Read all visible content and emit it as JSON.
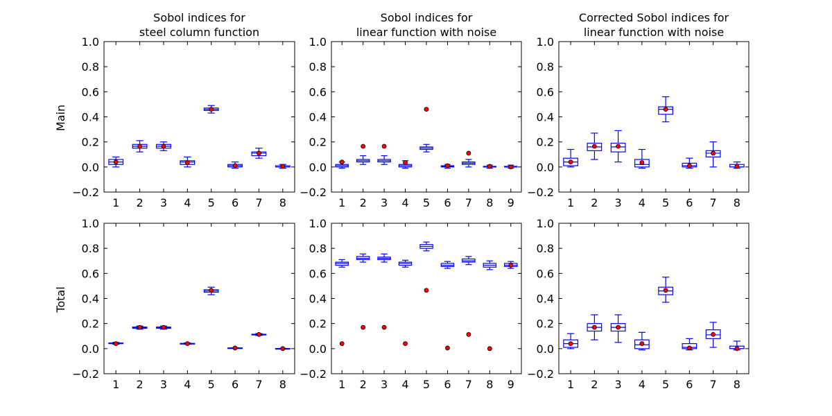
{
  "row_labels": [
    "Main",
    "Total"
  ],
  "colors": {
    "box": "#0000ff",
    "marker_fill": "#ff0000",
    "marker_edge": "#000000",
    "axes": "#000000"
  },
  "chart_data": [
    {
      "type": "box",
      "row": "Main",
      "title": "Sobol indices for\nsteel column function",
      "categories": [
        "1",
        "2",
        "3",
        "4",
        "5",
        "6",
        "7",
        "8"
      ],
      "yticks": [
        "−0.2",
        "0.0",
        "0.2",
        "0.4",
        "0.6",
        "0.8",
        "1.0"
      ],
      "ylim": [
        -0.2,
        1.0
      ],
      "boxes": [
        {
          "low": 0.0,
          "q1": 0.02,
          "median": 0.04,
          "q3": 0.06,
          "high": 0.08
        },
        {
          "low": 0.12,
          "q1": 0.15,
          "median": 0.165,
          "q3": 0.18,
          "high": 0.21
        },
        {
          "low": 0.13,
          "q1": 0.15,
          "median": 0.165,
          "q3": 0.18,
          "high": 0.2
        },
        {
          "low": 0.0,
          "q1": 0.02,
          "median": 0.04,
          "q3": 0.05,
          "high": 0.08
        },
        {
          "low": 0.43,
          "q1": 0.45,
          "median": 0.46,
          "q3": 0.47,
          "high": 0.49
        },
        {
          "low": -0.01,
          "q1": 0.0,
          "median": 0.01,
          "q3": 0.02,
          "high": 0.04
        },
        {
          "low": 0.07,
          "q1": 0.09,
          "median": 0.11,
          "q3": 0.12,
          "high": 0.15
        },
        {
          "low": -0.01,
          "q1": 0.0,
          "median": 0.0,
          "q3": 0.01,
          "high": 0.02
        }
      ],
      "markers": [
        0.04,
        0.165,
        0.165,
        0.035,
        0.46,
        0.01,
        0.11,
        0.005
      ]
    },
    {
      "type": "box",
      "row": "Main",
      "title": "Sobol indices for\nlinear function with noise",
      "categories": [
        "1",
        "2",
        "3",
        "4",
        "5",
        "6",
        "7",
        "8",
        "9"
      ],
      "yticks": [
        "−0.2",
        "0.0",
        "0.2",
        "0.4",
        "0.6",
        "0.8",
        "1.0"
      ],
      "ylim": [
        -0.2,
        1.0
      ],
      "boxes": [
        {
          "low": -0.01,
          "q1": 0.0,
          "median": 0.01,
          "q3": 0.02,
          "high": 0.04
        },
        {
          "low": 0.02,
          "q1": 0.04,
          "median": 0.05,
          "q3": 0.06,
          "high": 0.09
        },
        {
          "low": 0.02,
          "q1": 0.04,
          "median": 0.05,
          "q3": 0.06,
          "high": 0.09
        },
        {
          "low": -0.01,
          "q1": 0.0,
          "median": 0.01,
          "q3": 0.02,
          "high": 0.05
        },
        {
          "low": 0.12,
          "q1": 0.14,
          "median": 0.15,
          "q3": 0.16,
          "high": 0.18
        },
        {
          "low": -0.01,
          "q1": 0.0,
          "median": 0.005,
          "q3": 0.01,
          "high": 0.02
        },
        {
          "low": 0.0,
          "q1": 0.02,
          "median": 0.03,
          "q3": 0.04,
          "high": 0.06
        },
        {
          "low": -0.01,
          "q1": 0.0,
          "median": 0.0,
          "q3": 0.005,
          "high": 0.015
        },
        {
          "low": -0.01,
          "q1": 0.0,
          "median": 0.0,
          "q3": 0.005,
          "high": 0.015
        }
      ],
      "markers": [
        0.04,
        0.165,
        0.165,
        0.035,
        0.46,
        0.01,
        0.11,
        0.005,
        0.0
      ]
    },
    {
      "type": "box",
      "row": "Main",
      "title": "Corrected Sobol indices for\nlinear function with noise",
      "categories": [
        "1",
        "2",
        "3",
        "4",
        "5",
        "6",
        "7",
        "8"
      ],
      "yticks": [
        "−0.2",
        "0.0",
        "0.2",
        "0.4",
        "0.6",
        "0.8",
        "1.0"
      ],
      "ylim": [
        -0.2,
        1.0
      ],
      "boxes": [
        {
          "low": 0.0,
          "q1": 0.01,
          "median": 0.04,
          "q3": 0.07,
          "high": 0.14
        },
        {
          "low": 0.06,
          "q1": 0.13,
          "median": 0.16,
          "q3": 0.19,
          "high": 0.27
        },
        {
          "low": 0.04,
          "q1": 0.12,
          "median": 0.16,
          "q3": 0.19,
          "high": 0.29
        },
        {
          "low": -0.01,
          "q1": 0.0,
          "median": 0.02,
          "q3": 0.06,
          "high": 0.14
        },
        {
          "low": 0.36,
          "q1": 0.42,
          "median": 0.46,
          "q3": 0.48,
          "high": 0.56
        },
        {
          "low": -0.01,
          "q1": 0.0,
          "median": 0.01,
          "q3": 0.03,
          "high": 0.07
        },
        {
          "low": 0.0,
          "q1": 0.08,
          "median": 0.11,
          "q3": 0.13,
          "high": 0.2
        },
        {
          "low": -0.01,
          "q1": 0.0,
          "median": 0.0,
          "q3": 0.02,
          "high": 0.04
        }
      ],
      "markers": [
        0.04,
        0.165,
        0.165,
        0.035,
        0.46,
        0.01,
        0.11,
        0.005
      ]
    },
    {
      "type": "box",
      "row": "Total",
      "title": "",
      "categories": [
        "1",
        "2",
        "3",
        "4",
        "5",
        "6",
        "7",
        "8"
      ],
      "yticks": [
        "−0.2",
        "0.0",
        "0.2",
        "0.4",
        "0.6",
        "0.8",
        "1.0"
      ],
      "ylim": [
        -0.2,
        1.0
      ],
      "boxes": [
        {
          "low": 0.035,
          "q1": 0.04,
          "median": 0.042,
          "q3": 0.045,
          "high": 0.05
        },
        {
          "low": 0.155,
          "q1": 0.162,
          "median": 0.167,
          "q3": 0.172,
          "high": 0.18
        },
        {
          "low": 0.155,
          "q1": 0.162,
          "median": 0.167,
          "q3": 0.172,
          "high": 0.18
        },
        {
          "low": 0.035,
          "q1": 0.038,
          "median": 0.04,
          "q3": 0.042,
          "high": 0.046
        },
        {
          "low": 0.43,
          "q1": 0.45,
          "median": 0.46,
          "q3": 0.47,
          "high": 0.49
        },
        {
          "low": 0.003,
          "q1": 0.004,
          "median": 0.005,
          "q3": 0.006,
          "high": 0.008
        },
        {
          "low": 0.105,
          "q1": 0.109,
          "median": 0.112,
          "q3": 0.115,
          "high": 0.12
        },
        {
          "low": -0.003,
          "q1": -0.001,
          "median": 0.0,
          "q3": 0.001,
          "high": 0.003
        }
      ],
      "markers": [
        0.04,
        0.17,
        0.17,
        0.04,
        0.465,
        0.005,
        0.113,
        0.0
      ]
    },
    {
      "type": "box",
      "row": "Total",
      "title": "",
      "categories": [
        "1",
        "2",
        "3",
        "4",
        "5",
        "6",
        "7",
        "8",
        "9"
      ],
      "yticks": [
        "−0.2",
        "0.0",
        "0.2",
        "0.4",
        "0.6",
        "0.8",
        "1.0"
      ],
      "ylim": [
        -0.2,
        1.0
      ],
      "boxes": [
        {
          "low": 0.65,
          "q1": 0.665,
          "median": 0.68,
          "q3": 0.69,
          "high": 0.71
        },
        {
          "low": 0.69,
          "q1": 0.71,
          "median": 0.72,
          "q3": 0.735,
          "high": 0.755
        },
        {
          "low": 0.69,
          "q1": 0.71,
          "median": 0.72,
          "q3": 0.73,
          "high": 0.755
        },
        {
          "low": 0.65,
          "q1": 0.665,
          "median": 0.68,
          "q3": 0.69,
          "high": 0.705
        },
        {
          "low": 0.78,
          "q1": 0.8,
          "median": 0.815,
          "q3": 0.83,
          "high": 0.85
        },
        {
          "low": 0.64,
          "q1": 0.655,
          "median": 0.665,
          "q3": 0.68,
          "high": 0.695
        },
        {
          "low": 0.67,
          "q1": 0.69,
          "median": 0.7,
          "q3": 0.715,
          "high": 0.735
        },
        {
          "low": 0.63,
          "q1": 0.65,
          "median": 0.665,
          "q3": 0.68,
          "high": 0.7
        },
        {
          "low": 0.64,
          "q1": 0.655,
          "median": 0.665,
          "q3": 0.68,
          "high": 0.695
        }
      ],
      "markers": [
        0.04,
        0.17,
        0.17,
        0.04,
        0.465,
        0.005,
        0.113,
        0.0,
        0.665
      ]
    },
    {
      "type": "box",
      "row": "Total",
      "title": "",
      "categories": [
        "1",
        "2",
        "3",
        "4",
        "5",
        "6",
        "7",
        "8"
      ],
      "yticks": [
        "−0.2",
        "0.0",
        "0.2",
        "0.4",
        "0.6",
        "0.8",
        "1.0"
      ],
      "ylim": [
        -0.2,
        1.0
      ],
      "boxes": [
        {
          "low": 0.0,
          "q1": 0.01,
          "median": 0.04,
          "q3": 0.07,
          "high": 0.12
        },
        {
          "low": 0.07,
          "q1": 0.14,
          "median": 0.17,
          "q3": 0.2,
          "high": 0.27
        },
        {
          "low": 0.05,
          "q1": 0.14,
          "median": 0.17,
          "q3": 0.2,
          "high": 0.27
        },
        {
          "low": -0.01,
          "q1": 0.0,
          "median": 0.03,
          "q3": 0.07,
          "high": 0.13
        },
        {
          "low": 0.37,
          "q1": 0.43,
          "median": 0.46,
          "q3": 0.49,
          "high": 0.57
        },
        {
          "low": -0.01,
          "q1": 0.0,
          "median": 0.01,
          "q3": 0.04,
          "high": 0.08
        },
        {
          "low": 0.01,
          "q1": 0.08,
          "median": 0.11,
          "q3": 0.15,
          "high": 0.21
        },
        {
          "low": -0.01,
          "q1": 0.0,
          "median": 0.0,
          "q3": 0.02,
          "high": 0.06
        }
      ],
      "markers": [
        0.04,
        0.17,
        0.17,
        0.04,
        0.465,
        0.005,
        0.113,
        0.0
      ]
    }
  ]
}
